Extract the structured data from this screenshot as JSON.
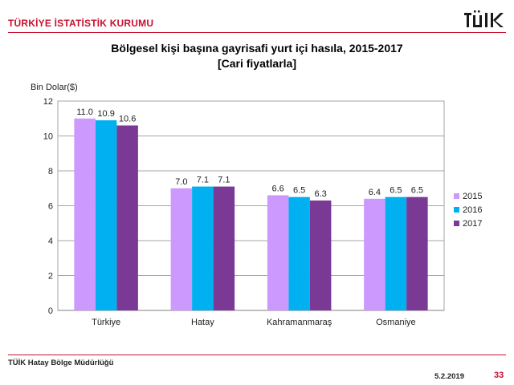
{
  "header": {
    "organization": "TÜRKİYE İSTATİSTİK KURUMU",
    "logo_text": "TÜİK",
    "brand_color": "#c8102e"
  },
  "footer": {
    "organization": "TÜİK Hatay Bölge Müdürlüğü",
    "date": "5.2.2019",
    "page": "33"
  },
  "chart_data": {
    "type": "bar",
    "title": "Bölgesel kişi başına gayrisafi yurt içi hasıla, 2015-2017",
    "subtitle": "[Cari fiyatlarla]",
    "ylabel": "Bin Dolar($)",
    "xlabel": "",
    "categories": [
      "Türkiye",
      "Hatay",
      "Kahramanmaraş",
      "Osmaniye"
    ],
    "series": [
      {
        "name": "2015",
        "color": "#cc99ff",
        "values": [
          11.0,
          7.0,
          6.6,
          6.4
        ]
      },
      {
        "name": "2016",
        "color": "#00b0f0",
        "values": [
          10.9,
          7.1,
          6.5,
          6.5
        ]
      },
      {
        "name": "2017",
        "color": "#7b3996",
        "values": [
          10.6,
          7.1,
          6.3,
          6.5
        ]
      }
    ],
    "ylim": [
      0,
      12
    ],
    "yticks": [
      0,
      2,
      4,
      6,
      8,
      10,
      12
    ],
    "grid": true,
    "legend": "right"
  }
}
